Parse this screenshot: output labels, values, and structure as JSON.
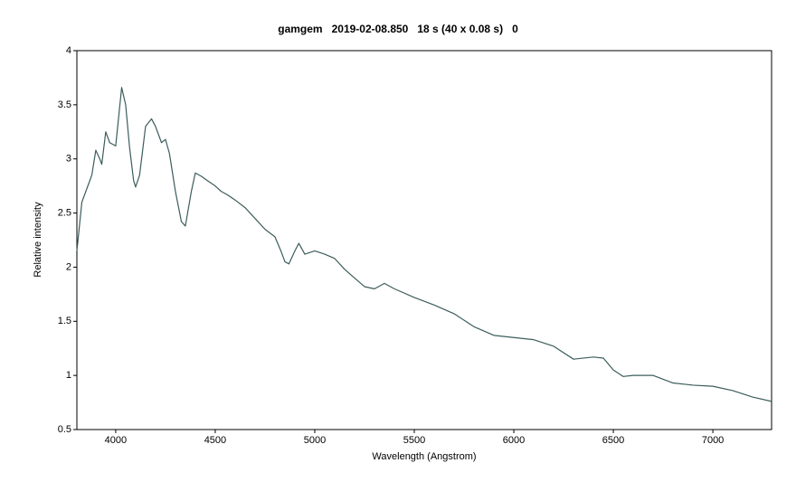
{
  "chart_data": {
    "type": "line",
    "title": "gamgem   2019-02-08.850   18 s (40 x 0.08 s)   0",
    "xlabel": "Wavelength (Angstrom)",
    "ylabel": "Relative intensity",
    "xlim": [
      3805,
      7295
    ],
    "ylim": [
      0.5,
      4
    ],
    "xticks": [
      4000,
      4500,
      5000,
      5500,
      6000,
      6500,
      7000
    ],
    "yticks": [
      0.5,
      1,
      1.5,
      2,
      2.5,
      3,
      3.5,
      4
    ],
    "grid": false,
    "series": [
      {
        "color": "#3d5c5c",
        "x": [
          3805,
          3830,
          3860,
          3880,
          3900,
          3920,
          3930,
          3950,
          3970,
          4000,
          4030,
          4050,
          4070,
          4090,
          4100,
          4120,
          4150,
          4180,
          4200,
          4230,
          4250,
          4270,
          4300,
          4330,
          4350,
          4380,
          4400,
          4430,
          4460,
          4500,
          4530,
          4560,
          4600,
          4650,
          4700,
          4750,
          4800,
          4830,
          4850,
          4870,
          4900,
          4920,
          4950,
          5000,
          5050,
          5100,
          5150,
          5200,
          5250,
          5300,
          5350,
          5400,
          5500,
          5600,
          5700,
          5800,
          5900,
          6000,
          6100,
          6200,
          6300,
          6400,
          6450,
          6500,
          6550,
          6600,
          6700,
          6800,
          6900,
          7000,
          7100,
          7200,
          7295
        ],
        "values": [
          2.15,
          2.6,
          2.75,
          2.85,
          3.08,
          3.0,
          2.95,
          3.25,
          3.15,
          3.12,
          3.66,
          3.5,
          3.1,
          2.8,
          2.74,
          2.85,
          3.3,
          3.37,
          3.3,
          3.15,
          3.18,
          3.05,
          2.7,
          2.42,
          2.38,
          2.7,
          2.87,
          2.84,
          2.8,
          2.75,
          2.7,
          2.67,
          2.62,
          2.55,
          2.45,
          2.35,
          2.28,
          2.15,
          2.05,
          2.03,
          2.15,
          2.22,
          2.12,
          2.15,
          2.12,
          2.08,
          1.98,
          1.9,
          1.82,
          1.8,
          1.85,
          1.8,
          1.72,
          1.65,
          1.57,
          1.45,
          1.37,
          1.35,
          1.33,
          1.27,
          1.15,
          1.17,
          1.16,
          1.05,
          0.99,
          1.0,
          1.0,
          0.93,
          0.91,
          0.9,
          0.86,
          0.8,
          0.76
        ]
      }
    ]
  }
}
